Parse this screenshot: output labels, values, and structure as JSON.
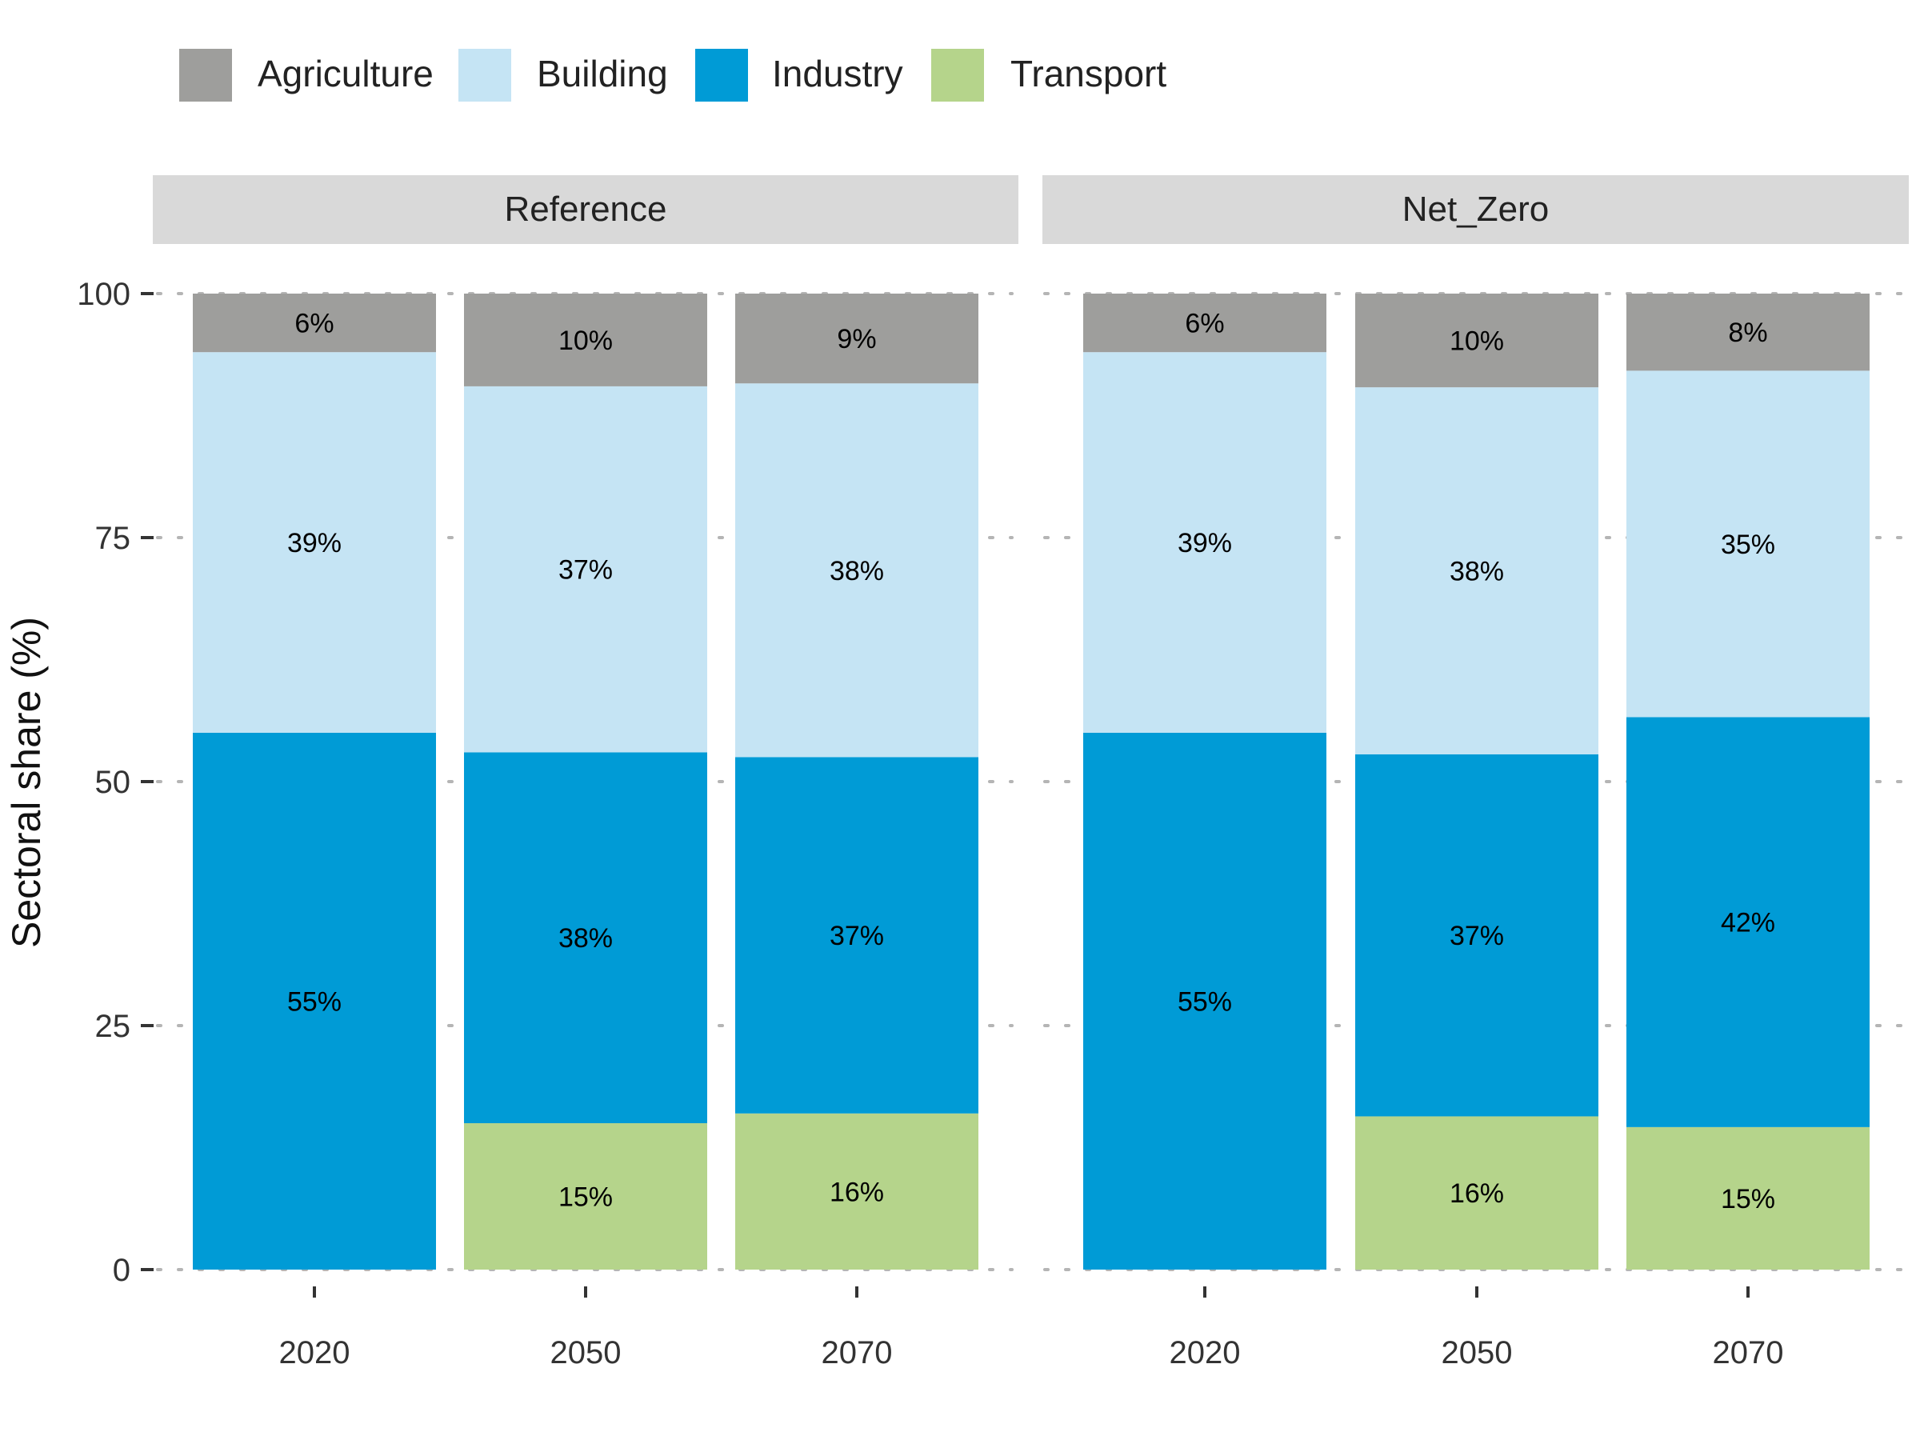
{
  "chart_data": {
    "type": "bar",
    "stacked": true,
    "ylabel": "Sectoral share (%)",
    "ylim": [
      0,
      100
    ],
    "yticks": [
      0,
      25,
      50,
      75,
      100
    ],
    "grid": true,
    "legend": {
      "position": "top-left"
    },
    "categories": [
      "2020",
      "2050",
      "2070"
    ],
    "colors": {
      "Agriculture": "#9e9e9c",
      "Building": "#c5e4f4",
      "Industry": "#009bd6",
      "Transport": "#b5d48b"
    },
    "legend_items": [
      "Agriculture",
      "Building",
      "Industry",
      "Transport"
    ],
    "panels": [
      {
        "name": "Reference",
        "series": [
          {
            "name": "Transport",
            "values": [
              0,
              15,
              16
            ],
            "labels": [
              "",
              "15%",
              "16%"
            ]
          },
          {
            "name": "Industry",
            "values": [
              55,
              38,
              36.5
            ],
            "labels": [
              "55%",
              "38%",
              "37%"
            ]
          },
          {
            "name": "Building",
            "values": [
              39,
              37.5,
              38.3
            ],
            "labels": [
              "39%",
              "37%",
              "38%"
            ]
          },
          {
            "name": "Agriculture",
            "values": [
              6,
              9.5,
              9.2
            ],
            "labels": [
              "6%",
              "10%",
              "9%"
            ]
          }
        ]
      },
      {
        "name": "Net_Zero",
        "series": [
          {
            "name": "Transport",
            "values": [
              0,
              15.7,
              14.6
            ],
            "labels": [
              "",
              "16%",
              "15%"
            ]
          },
          {
            "name": "Industry",
            "values": [
              55,
              37.1,
              42
            ],
            "labels": [
              "55%",
              "37%",
              "42%"
            ]
          },
          {
            "name": "Building",
            "values": [
              39,
              37.6,
              35.5
            ],
            "labels": [
              "39%",
              "38%",
              "35%"
            ]
          },
          {
            "name": "Agriculture",
            "values": [
              6,
              9.6,
              7.9
            ],
            "labels": [
              "6%",
              "10%",
              "8%"
            ]
          }
        ]
      }
    ]
  }
}
